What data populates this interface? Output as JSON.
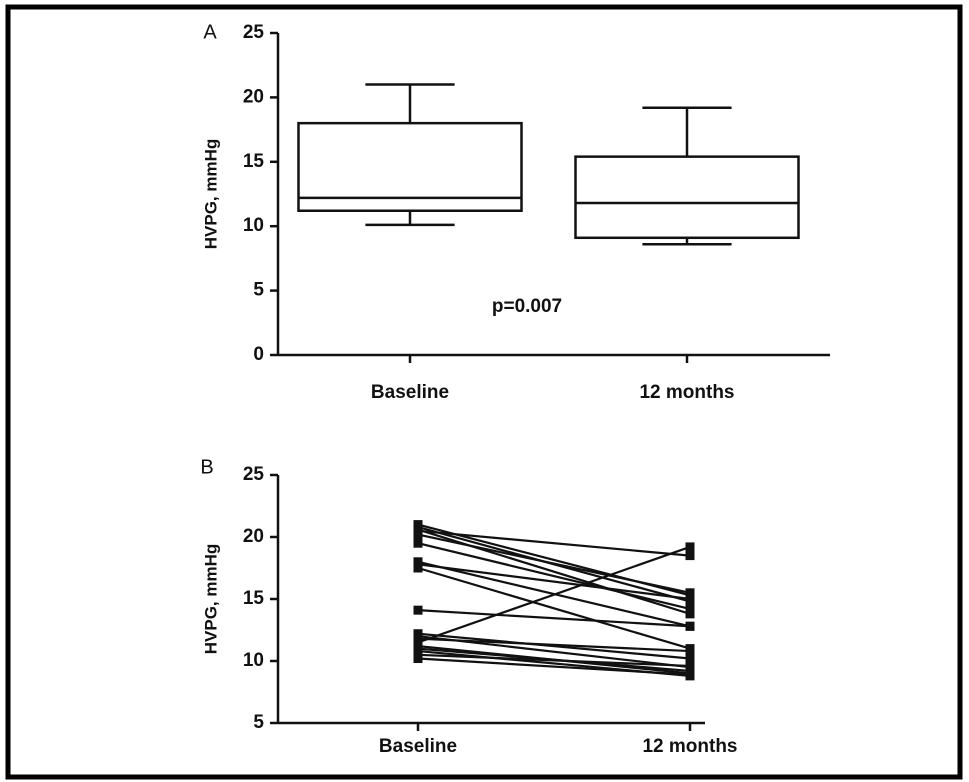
{
  "chart_data": [
    {
      "type": "box",
      "panel_label": "A",
      "y_label": "HVPG, mmHg",
      "annotation": "p=0.007",
      "categories": [
        "Baseline",
        "12 months"
      ],
      "boxes": [
        {
          "min": 10.1,
          "q1": 11.2,
          "median": 12.2,
          "q3": 18,
          "max": 21
        },
        {
          "min": 8.6,
          "q1": 9.1,
          "median": 11.8,
          "q3": 15.4,
          "max": 19.2
        }
      ],
      "color": "#111111",
      "ylim": [
        0,
        25
      ],
      "yticks": [
        0,
        5,
        10,
        15,
        20,
        25
      ]
    },
    {
      "type": "line",
      "panel_label": "B",
      "y_label": "HVPG, mmHg",
      "categories": [
        "Baseline",
        "12 months"
      ],
      "color": "#111111",
      "series": [
        {
          "values": [
            21,
            15.3
          ]
        },
        {
          "values": [
            20.8,
            14.8
          ]
        },
        {
          "values": [
            20.6,
            13.8
          ]
        },
        {
          "values": [
            20.5,
            18.5
          ]
        },
        {
          "values": [
            20.2,
            15.5
          ]
        },
        {
          "values": [
            19.5,
            14.2
          ]
        },
        {
          "values": [
            18,
            12.8
          ]
        },
        {
          "values": [
            17.8,
            15
          ]
        },
        {
          "values": [
            17.5,
            11
          ]
        },
        {
          "values": [
            14.1,
            12.8
          ]
        },
        {
          "values": [
            12.2,
            10.2
          ]
        },
        {
          "values": [
            12,
            9.5
          ]
        },
        {
          "values": [
            11.8,
            10.8
          ]
        },
        {
          "values": [
            11.5,
            19.2
          ]
        },
        {
          "values": [
            11.2,
            9
          ]
        },
        {
          "values": [
            11,
            9.2
          ]
        },
        {
          "values": [
            10.8,
            8.8
          ]
        },
        {
          "values": [
            10.5,
            9.6
          ]
        },
        {
          "values": [
            10.2,
            8.9
          ]
        }
      ],
      "ylim": [
        5,
        25
      ],
      "yticks": [
        5,
        10,
        15,
        20,
        25
      ]
    }
  ]
}
